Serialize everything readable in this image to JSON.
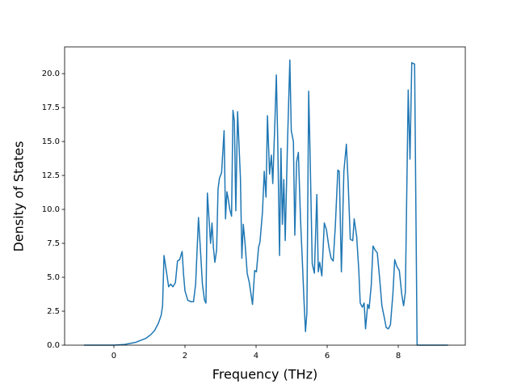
{
  "chart_data": {
    "type": "line",
    "x_label": "Frequency (THz)",
    "y_label": "Density of States",
    "xlim": [
      -1.386,
      9.886
    ],
    "ylim": [
      0,
      21.97
    ],
    "xticks": [
      0,
      2,
      4,
      6,
      8
    ],
    "yticks": [
      {
        "value": 0,
        "label": "0.0"
      },
      {
        "value": 2.5,
        "label": "2.5"
      },
      {
        "value": 5,
        "label": "5.0"
      },
      {
        "value": 7.5,
        "label": "7.5"
      },
      {
        "value": 10,
        "label": "10.0"
      },
      {
        "value": 12.5,
        "label": "12.5"
      },
      {
        "value": 15,
        "label": "15.0"
      },
      {
        "value": 17.5,
        "label": "17.5"
      },
      {
        "value": 20,
        "label": "20.0"
      }
    ],
    "grid": false,
    "series": [
      {
        "color": "#1f77b4",
        "x": [
          -0.84,
          0,
          0.3,
          0.6,
          0.9,
          1.05,
          1.15,
          1.25,
          1.33,
          1.37,
          1.41,
          1.49,
          1.54,
          1.6,
          1.66,
          1.73,
          1.79,
          1.85,
          1.92,
          1.96,
          2.0,
          2.08,
          2.17,
          2.24,
          2.3,
          2.38,
          2.44,
          2.49,
          2.55,
          2.59,
          2.63,
          2.72,
          2.76,
          2.8,
          2.84,
          2.89,
          2.93,
          2.97,
          3.03,
          3.1,
          3.14,
          3.18,
          3.22,
          3.26,
          3.31,
          3.35,
          3.39,
          3.43,
          3.48,
          3.56,
          3.6,
          3.64,
          3.69,
          3.75,
          3.81,
          3.9,
          3.96,
          4.01,
          4.07,
          4.11,
          4.18,
          4.23,
          4.28,
          4.32,
          4.38,
          4.43,
          4.47,
          4.53,
          4.57,
          4.61,
          4.66,
          4.7,
          4.74,
          4.78,
          4.82,
          4.88,
          4.95,
          4.99,
          5.05,
          5.09,
          5.14,
          5.19,
          5.25,
          5.3,
          5.35,
          5.39,
          5.43,
          5.48,
          5.52,
          5.58,
          5.64,
          5.71,
          5.75,
          5.79,
          5.85,
          5.92,
          5.98,
          6.05,
          6.11,
          6.17,
          6.23,
          6.3,
          6.34,
          6.4,
          6.47,
          6.54,
          6.59,
          6.65,
          6.72,
          6.76,
          6.83,
          6.89,
          6.93,
          6.99,
          7.04,
          7.08,
          7.14,
          7.18,
          7.24,
          7.29,
          7.35,
          7.41,
          7.48,
          7.54,
          7.61,
          7.66,
          7.72,
          7.78,
          7.85,
          7.9,
          7.96,
          8.03,
          8.1,
          8.15,
          8.2,
          8.28,
          8.33,
          8.38,
          8.46,
          8.53,
          9.4
        ],
        "values": [
          0,
          0,
          0.05,
          0.2,
          0.5,
          0.8,
          1.1,
          1.6,
          2.2,
          2.9,
          6.6,
          5.2,
          4.3,
          4.5,
          4.3,
          4.6,
          6.2,
          6.3,
          6.9,
          5.2,
          4.0,
          3.3,
          3.2,
          3.2,
          4.5,
          9.4,
          6.8,
          4.5,
          3.3,
          3.1,
          11.2,
          7.5,
          9.0,
          7.2,
          6.1,
          7.0,
          11.5,
          12.3,
          12.7,
          15.8,
          9.3,
          11.3,
          10.7,
          10.0,
          9.5,
          17.3,
          16.5,
          9.9,
          17.2,
          12.3,
          6.4,
          8.9,
          7.5,
          5.3,
          4.6,
          3.0,
          5.5,
          5.4,
          7.2,
          7.6,
          9.8,
          12.8,
          10.9,
          16.9,
          12.6,
          14.0,
          11.9,
          16.5,
          19.9,
          15.0,
          6.6,
          14.5,
          8.9,
          12.2,
          7.7,
          14.5,
          21.0,
          15.8,
          15.0,
          8.1,
          13.5,
          14.2,
          9.3,
          6.3,
          3.2,
          1.0,
          2.4,
          18.7,
          14.0,
          6.0,
          5.3,
          11.1,
          5.4,
          6.1,
          5.1,
          9.0,
          8.5,
          7.2,
          6.4,
          6.2,
          8.8,
          12.9,
          12.8,
          5.4,
          12.8,
          14.8,
          12.0,
          7.8,
          7.7,
          9.3,
          8.0,
          5.5,
          3.1,
          2.8,
          3.1,
          1.2,
          3.0,
          2.7,
          4.4,
          7.3,
          7.0,
          6.8,
          4.8,
          2.9,
          2.0,
          1.3,
          1.2,
          1.5,
          3.8,
          6.3,
          5.8,
          5.5,
          3.7,
          2.9,
          3.9,
          18.8,
          13.7,
          20.8,
          20.7,
          0,
          0
        ]
      }
    ]
  }
}
